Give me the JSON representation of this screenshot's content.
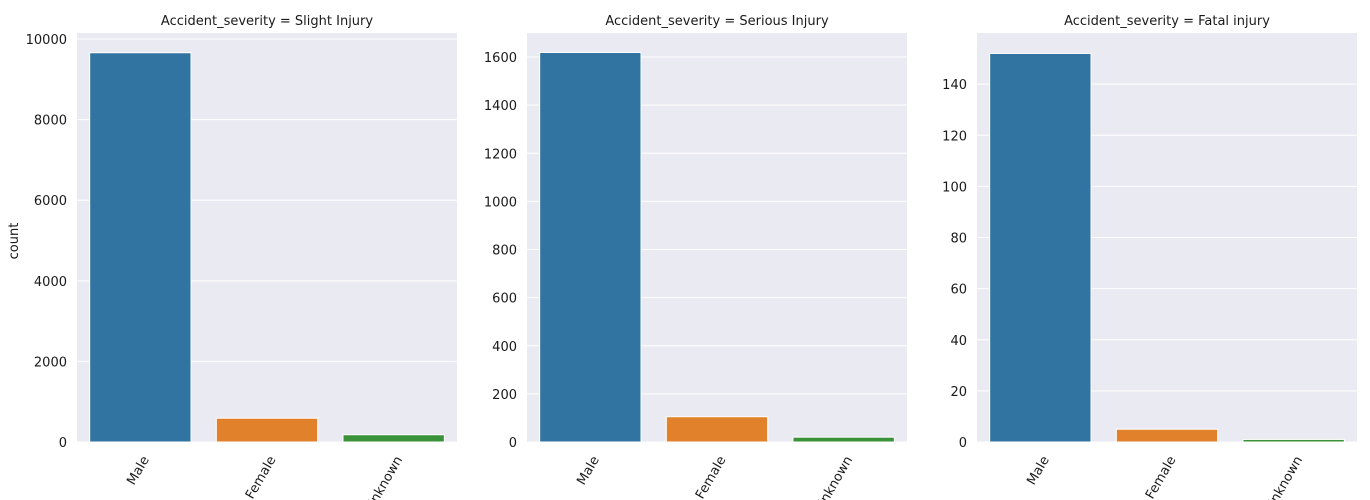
{
  "chart_data": {
    "type": "bar",
    "facet_variable": "Accident_severity",
    "ylabel": "count",
    "xlabel": "",
    "categories": [
      "Male",
      "Female",
      "Unknown"
    ],
    "category_colors": [
      "#3274a1",
      "#e1812c",
      "#3a923a"
    ],
    "background_color": "#eaeaf2",
    "grid": true,
    "panels": [
      {
        "title": "Accident_severity = Slight Injury",
        "values": [
          9660,
          590,
          180
        ],
        "ylim": [
          0,
          10150
        ],
        "yticks": [
          0,
          2000,
          4000,
          6000,
          8000,
          10000
        ]
      },
      {
        "title": "Accident_severity = Serious Injury",
        "values": [
          1619,
          105,
          20
        ],
        "ylim": [
          0,
          1700
        ],
        "yticks": [
          0,
          200,
          400,
          600,
          800,
          1000,
          1200,
          1400,
          1600
        ]
      },
      {
        "title": "Accident_severity = Fatal injury",
        "values": [
          152,
          5,
          1
        ],
        "ylim": [
          0,
          160
        ],
        "yticks": [
          0,
          20,
          40,
          60,
          80,
          100,
          120,
          140
        ]
      }
    ]
  }
}
